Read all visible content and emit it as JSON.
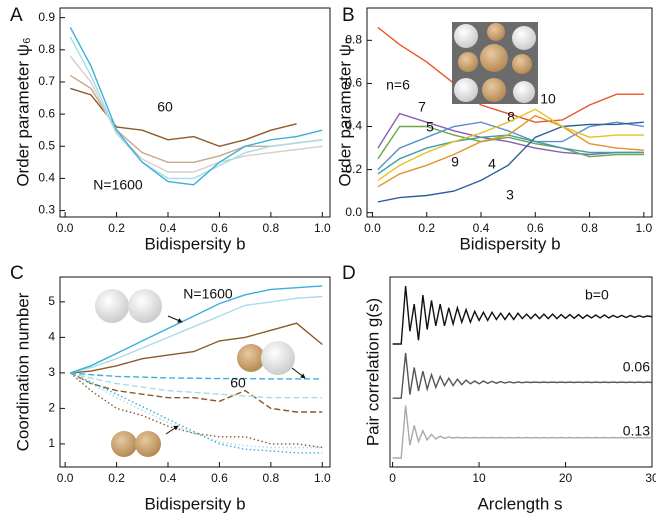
{
  "chart_data": [
    {
      "type": "line",
      "panel": "A",
      "xlabel": "Bidispersity b",
      "ylabel": "Order parameter ψ₆",
      "x": [
        0.02,
        0.1,
        0.2,
        0.3,
        0.4,
        0.5,
        0.6,
        0.7,
        0.8,
        0.9,
        1.0
      ],
      "series": [
        {
          "color": "#8b5a2b",
          "values": [
            0.68,
            0.66,
            0.56,
            0.55,
            0.52,
            0.53,
            0.5,
            0.52,
            0.55,
            0.57,
            null
          ]
        },
        {
          "color": "#c9a88a",
          "values": [
            0.72,
            0.68,
            0.55,
            0.48,
            0.45,
            0.45,
            0.47,
            0.5,
            0.5,
            0.51,
            0.52
          ]
        },
        {
          "color": "#d6cfc8",
          "values": [
            0.78,
            0.7,
            0.54,
            0.46,
            0.42,
            0.42,
            0.45,
            0.47,
            0.48,
            0.49,
            0.5
          ]
        },
        {
          "color": "#a8dce8",
          "values": [
            0.84,
            0.72,
            0.54,
            0.45,
            0.4,
            0.4,
            0.44,
            0.48,
            0.5,
            0.51,
            0.52
          ]
        },
        {
          "color": "#3ab0d8",
          "values": [
            0.87,
            0.75,
            0.55,
            0.45,
            0.39,
            0.38,
            0.45,
            0.5,
            0.52,
            0.53,
            0.55
          ]
        }
      ],
      "annotations": [
        "60",
        "N=1600"
      ],
      "xlim": [
        -0.02,
        1.03
      ],
      "ylim": [
        0.28,
        0.93
      ],
      "xticks": [
        {
          "value": 0,
          "label": "0.0"
        },
        0.2,
        0.4,
        0.6,
        0.8,
        {
          "value": 1,
          "label": "1.0"
        }
      ],
      "yticks": [
        0.3,
        0.4,
        0.5,
        0.6,
        0.7,
        0.8,
        0.9
      ]
    },
    {
      "type": "line",
      "panel": "B",
      "xlabel": "Bidispersity b",
      "ylabel": "Order parameter ψₙ",
      "x": [
        0.02,
        0.1,
        0.2,
        0.3,
        0.4,
        0.5,
        0.6,
        0.7,
        0.8,
        0.9,
        1.0
      ],
      "series": [
        {
          "name": "n=6",
          "color": "#e8562a",
          "values": [
            0.86,
            0.78,
            0.7,
            0.6,
            0.5,
            0.46,
            0.42,
            0.43,
            0.5,
            0.55,
            0.55
          ]
        },
        {
          "name": "7",
          "color": "#8a5fb0",
          "values": [
            0.3,
            0.46,
            0.42,
            0.38,
            0.35,
            0.33,
            0.3,
            0.28,
            0.27,
            0.28,
            0.28
          ]
        },
        {
          "name": "5",
          "color": "#6aa84f",
          "values": [
            0.25,
            0.4,
            0.4,
            0.36,
            0.33,
            0.35,
            0.32,
            0.3,
            0.26,
            0.27,
            0.27
          ]
        },
        {
          "name": "8",
          "color": "#5b8fc9",
          "values": [
            0.2,
            0.3,
            0.35,
            0.4,
            0.42,
            0.38,
            0.33,
            0.33,
            0.4,
            0.42,
            0.4
          ]
        },
        {
          "name": "9",
          "color": "#3aa0a8",
          "values": [
            0.18,
            0.25,
            0.3,
            0.33,
            0.35,
            0.36,
            0.33,
            0.3,
            0.28,
            0.28,
            0.28
          ]
        },
        {
          "name": "4",
          "color": "#e3932b",
          "values": [
            0.12,
            0.18,
            0.22,
            0.27,
            0.33,
            0.36,
            0.45,
            0.4,
            0.32,
            0.3,
            0.29
          ]
        },
        {
          "name": "3",
          "color": "#2d5fa0",
          "values": [
            0.05,
            0.07,
            0.08,
            0.1,
            0.15,
            0.22,
            0.35,
            0.4,
            0.41,
            0.41,
            0.42
          ]
        },
        {
          "name": "10",
          "color": "#e8c020",
          "values": [
            0.15,
            0.22,
            0.28,
            0.33,
            0.37,
            0.42,
            0.48,
            0.4,
            0.35,
            0.36,
            0.36
          ]
        }
      ],
      "xlim": [
        -0.02,
        1.03
      ],
      "ylim": [
        -0.02,
        0.95
      ],
      "xticks": [
        {
          "value": 0,
          "label": "0.0"
        },
        0.2,
        0.4,
        0.6,
        0.8,
        {
          "value": 1,
          "label": "1.0"
        }
      ],
      "yticks": [
        {
          "value": 0,
          "label": "0.0"
        },
        0.2,
        0.4,
        0.6,
        0.8
      ]
    },
    {
      "type": "line",
      "panel": "C",
      "xlabel": "Bidispersity b",
      "ylabel": "Coordination number",
      "x": [
        0.02,
        0.1,
        0.2,
        0.3,
        0.4,
        0.5,
        0.6,
        0.7,
        0.8,
        0.9,
        1.0
      ],
      "series": [
        {
          "color": "#8b5a2b",
          "dash": "solid",
          "values": [
            3,
            3.05,
            3.2,
            3.4,
            3.5,
            3.6,
            3.9,
            4.0,
            4.2,
            4.4,
            3.8
          ]
        },
        {
          "color": "#a8dce8",
          "dash": "solid",
          "values": [
            3,
            3.15,
            3.4,
            3.7,
            4.0,
            4.3,
            4.6,
            4.9,
            5.0,
            5.1,
            5.15
          ]
        },
        {
          "color": "#3ab0d8",
          "dash": "solid",
          "values": [
            3,
            3.2,
            3.55,
            3.9,
            4.25,
            4.6,
            4.95,
            5.2,
            5.35,
            5.4,
            5.45
          ]
        },
        {
          "color": "#8b5a2b",
          "dash": "dashed",
          "values": [
            3,
            2.7,
            2.5,
            2.4,
            2.3,
            2.3,
            2.2,
            2.5,
            2.0,
            1.9,
            1.9
          ]
        },
        {
          "color": "#a8dce8",
          "dash": "dashed",
          "values": [
            3,
            2.85,
            2.7,
            2.6,
            2.5,
            2.45,
            2.4,
            2.35,
            2.3,
            2.3,
            2.3
          ]
        },
        {
          "color": "#3ab0d8",
          "dash": "dashed",
          "values": [
            3,
            2.95,
            2.9,
            2.88,
            2.86,
            2.85,
            2.84,
            2.84,
            2.83,
            2.83,
            2.83
          ]
        },
        {
          "color": "#8b5a2b",
          "dash": "dotted",
          "values": [
            3,
            2.5,
            2.0,
            1.8,
            1.5,
            1.3,
            1.2,
            1.2,
            1.0,
            1.0,
            0.9
          ]
        },
        {
          "color": "#a8dce8",
          "dash": "dotted",
          "values": [
            3,
            2.7,
            2.3,
            1.95,
            1.6,
            1.3,
            1.05,
            0.95,
            0.9,
            0.9,
            0.9
          ]
        },
        {
          "color": "#3ab0d8",
          "dash": "dotted",
          "values": [
            3,
            2.75,
            2.4,
            2.05,
            1.7,
            1.35,
            1.0,
            0.85,
            0.8,
            0.75,
            0.75
          ]
        }
      ],
      "annotations": [
        "N=1600",
        "60"
      ],
      "xlim": [
        -0.02,
        1.03
      ],
      "ylim": [
        0.35,
        5.7
      ],
      "xticks": [
        {
          "value": 0,
          "label": "0.0"
        },
        0.2,
        0.4,
        0.6,
        0.8,
        {
          "value": 1,
          "label": "1.0"
        }
      ],
      "yticks": [
        1,
        2,
        3,
        4,
        5
      ]
    },
    {
      "type": "line",
      "panel": "D",
      "xlabel": "Arclength s",
      "ylabel": "Pair correlation g(s)",
      "x": [
        0,
        0.5,
        1,
        1.5,
        2,
        2.5,
        3,
        3.5,
        4,
        4.5,
        5,
        5.5,
        6,
        6.5,
        7,
        7.5,
        8,
        8.5,
        9,
        9.5,
        10,
        10.5,
        11,
        11.5,
        12,
        12.5,
        13,
        13.5,
        14,
        14.5,
        15,
        15.5,
        16,
        16.5,
        17,
        17.5,
        18,
        18.5,
        19,
        19.5,
        20,
        20.5,
        21,
        21.5,
        22,
        22.5,
        23,
        23.5,
        24,
        24.5,
        25,
        25.5,
        26,
        26.5,
        27,
        27.5,
        28,
        28.5,
        29,
        29.5,
        30
      ],
      "series": [
        {
          "name": "b=0",
          "color": "#111111",
          "values": [
            6.8,
            6.8,
            6.8,
            10.0,
            7.5,
            9.0,
            7.0,
            9.5,
            7.6,
            9.2,
            7.8,
            9.0,
            7.8,
            8.8,
            7.9,
            8.8,
            8.0,
            8.7,
            8.0,
            8.6,
            8.1,
            8.55,
            8.1,
            8.55,
            8.15,
            8.5,
            8.15,
            8.5,
            8.15,
            8.5,
            8.2,
            8.45,
            8.2,
            8.45,
            8.2,
            8.45,
            8.2,
            8.45,
            8.2,
            8.42,
            8.22,
            8.42,
            8.22,
            8.42,
            8.22,
            8.4,
            8.24,
            8.4,
            8.24,
            8.4,
            8.24,
            8.38,
            8.26,
            8.38,
            8.26,
            8.37,
            8.27,
            8.36,
            8.28,
            8.35,
            8.3
          ]
        },
        {
          "name": "0.06",
          "color": "#555555",
          "values": [
            3.8,
            3.8,
            3.8,
            6.3,
            4.0,
            5.5,
            4.2,
            5.3,
            4.3,
            5.1,
            4.4,
            5.0,
            4.5,
            4.9,
            4.5,
            4.85,
            4.55,
            4.8,
            4.6,
            4.75,
            4.6,
            4.75,
            4.62,
            4.73,
            4.63,
            4.72,
            4.64,
            4.71,
            4.65,
            4.7,
            4.66,
            4.69,
            4.67,
            4.69,
            4.67,
            4.69,
            4.67,
            4.69,
            4.67,
            4.69,
            4.67,
            4.69,
            4.67,
            4.69,
            4.67,
            4.69,
            4.67,
            4.69,
            4.67,
            4.69,
            4.67,
            4.69,
            4.67,
            4.69,
            4.67,
            4.69,
            4.67,
            4.69,
            4.67,
            4.69,
            4.67
          ]
        },
        {
          "name": "0.13",
          "color": "#aaaaaa",
          "values": [
            0.5,
            0.5,
            0.5,
            3.4,
            1.2,
            2.3,
            1.4,
            2.0,
            1.5,
            1.8,
            1.55,
            1.7,
            1.58,
            1.66,
            1.6,
            1.64,
            1.6,
            1.63,
            1.61,
            1.63,
            1.61,
            1.63,
            1.61,
            1.63,
            1.61,
            1.63,
            1.61,
            1.63,
            1.61,
            1.63,
            1.61,
            1.63,
            1.61,
            1.63,
            1.61,
            1.63,
            1.61,
            1.63,
            1.61,
            1.63,
            1.61,
            1.63,
            1.61,
            1.63,
            1.61,
            1.63,
            1.61,
            1.63,
            1.61,
            1.63,
            1.61,
            1.63,
            1.61,
            1.63,
            1.61,
            1.63,
            1.61,
            1.63,
            1.61,
            1.63,
            1.61
          ]
        }
      ],
      "xlim": [
        -0.3,
        30
      ],
      "ylim": [
        0,
        10.5
      ],
      "xticks": [
        0,
        10,
        20,
        30
      ]
    }
  ]
}
